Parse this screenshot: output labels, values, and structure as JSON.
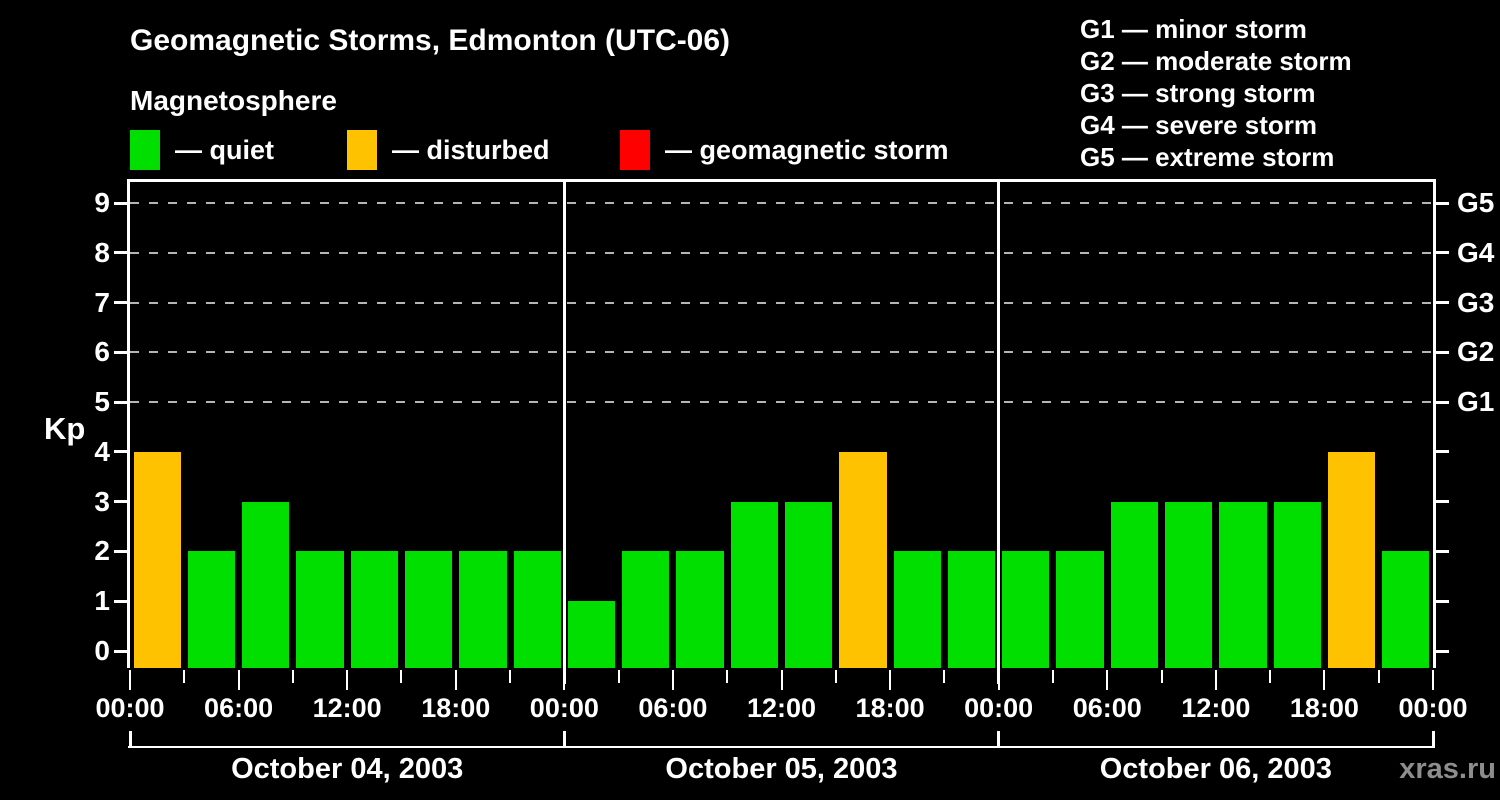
{
  "header": {
    "title": "Geomagnetic Storms, Edmonton (UTC-06)",
    "subtitle": "Magnetosphere",
    "legend": [
      {
        "label": "— quiet",
        "color": "#00DF00"
      },
      {
        "label": "— disturbed",
        "color": "#FFC200"
      },
      {
        "label": "— geomagnetic storm",
        "color": "#FF0000"
      }
    ],
    "g_scale_legend": [
      "G1 — minor storm",
      "G2 — moderate storm",
      "G3 — strong storm",
      "G4 — severe storm",
      "G5 — extreme storm"
    ]
  },
  "watermark": "xras.ru",
  "chart_data": {
    "type": "bar",
    "title": "Geomagnetic Storms, Edmonton (UTC-06)",
    "ylabel": "Kp",
    "ylim": [
      0,
      9
    ],
    "y_ticks": [
      0,
      1,
      2,
      3,
      4,
      5,
      6,
      7,
      8,
      9
    ],
    "grid_values": [
      5,
      6,
      7,
      8,
      9
    ],
    "grid_style": "dashed horizontal lines at storm levels G1-G5",
    "right_axis": [
      {
        "value": 5,
        "label": "G1"
      },
      {
        "value": 6,
        "label": "G2"
      },
      {
        "value": 7,
        "label": "G3"
      },
      {
        "value": 8,
        "label": "G4"
      },
      {
        "value": 9,
        "label": "G5"
      }
    ],
    "interval_hours": 3,
    "x_major_labels": [
      "00:00",
      "06:00",
      "12:00",
      "18:00",
      "00:00",
      "06:00",
      "12:00",
      "18:00",
      "00:00",
      "06:00",
      "12:00",
      "18:00",
      "00:00"
    ],
    "days": [
      {
        "date": "October 04, 2003",
        "values": [
          4,
          2,
          3,
          2,
          2,
          2,
          2,
          2
        ]
      },
      {
        "date": "October 05, 2003",
        "values": [
          1,
          2,
          2,
          3,
          3,
          4,
          2,
          2
        ]
      },
      {
        "date": "October 06, 2003",
        "values": [
          2,
          2,
          3,
          3,
          3,
          3,
          4,
          2
        ]
      }
    ],
    "colors": {
      "quiet": "#00DF00",
      "disturbed": "#FFC200",
      "storm": "#FF0000",
      "axis": "#FFFFFF",
      "grid": "#B5B5B5",
      "background": "#000000"
    },
    "color_thresholds": {
      "disturbed_min_kp": 4,
      "storm_min_kp": 5
    },
    "legend_position": "top-left"
  }
}
